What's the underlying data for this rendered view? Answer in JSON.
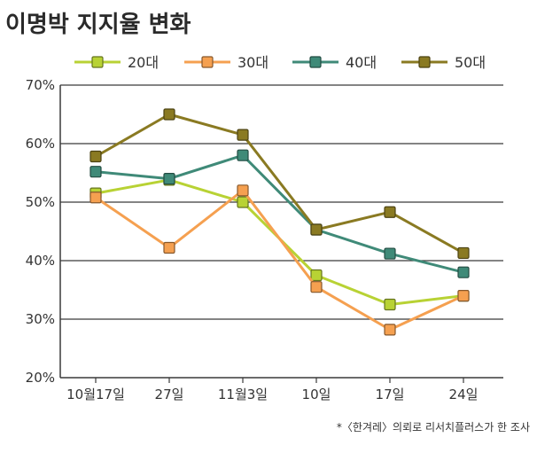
{
  "chart_data": {
    "type": "line",
    "title": "이명박 지지율 변화",
    "categories": [
      "10월17일",
      "27일",
      "11월3일",
      "10일",
      "17일",
      "24일"
    ],
    "ylim": [
      20,
      70
    ],
    "yticks": [
      "20%",
      "30%",
      "40%",
      "50%",
      "60%",
      "70%"
    ],
    "grid": true,
    "legend_position": "top",
    "series": [
      {
        "name": "20대",
        "color": "#b8d234",
        "values": [
          51.5,
          53.8,
          50.0,
          37.5,
          32.5,
          34.0
        ]
      },
      {
        "name": "30대",
        "color": "#f5a050",
        "values": [
          50.8,
          42.2,
          52.0,
          35.5,
          28.2,
          34.0
        ]
      },
      {
        "name": "40대",
        "color": "#3f8a78",
        "values": [
          55.2,
          54.0,
          58.0,
          45.3,
          41.2,
          38.0
        ]
      },
      {
        "name": "50대",
        "color": "#8a7a22",
        "values": [
          57.8,
          65.0,
          61.5,
          45.3,
          48.3,
          41.3
        ]
      }
    ],
    "note": "*〈한겨레〉의뢰로 리서치플러스가 한 조사"
  }
}
